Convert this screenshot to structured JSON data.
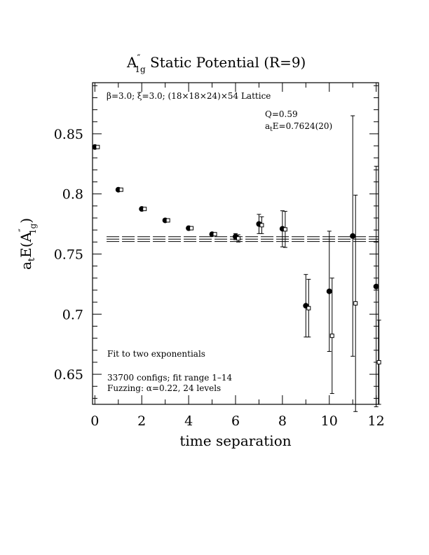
{
  "chart_data": {
    "type": "scatter",
    "title": "A″ 1g Static Potential (R=9)",
    "title_parts": {
      "main": "A",
      "prime": "″",
      "sub": "1g",
      "rest": " Static Potential (R=9)"
    },
    "xlabel": "time separation",
    "ylabel": "a_t E(A″_1g)",
    "ylabel_parts": {
      "a": "a",
      "a_sub": "t",
      "E": "E(A",
      "prime": "″",
      "sub": "1g",
      "close": ")"
    },
    "xlim": [
      -0.1,
      12.1
    ],
    "ylim": [
      0.625,
      0.8925
    ],
    "x_ticks": [
      0,
      2,
      4,
      6,
      8,
      10,
      12
    ],
    "x_tick_labels": [
      "0",
      "2",
      "4",
      "6",
      "8",
      "10",
      "12"
    ],
    "y_ticks": [
      0.65,
      0.7,
      0.75,
      0.8,
      0.85
    ],
    "y_tick_labels": [
      "0.65",
      "0.7",
      "0.75",
      "0.8",
      "0.85"
    ],
    "annotations": {
      "lattice": "β=3.0; ξ=3.0; (18×18×24)×54 Lattice",
      "q": "Q=0.59",
      "energy": "E=0.7624(20)",
      "energy_prefix": "a",
      "energy_sub": "t",
      "fit": "Fit to two exponentials",
      "configs": "33700 configs; fit range 1–14",
      "fuzzing": "Fuzzing: α=0.22, 24 levels"
    },
    "series": [
      {
        "marker": "filled-circle",
        "points": [
          {
            "x": 0,
            "y": 0.839,
            "err": 0.0
          },
          {
            "x": 1,
            "y": 0.8035,
            "err": 0.0
          },
          {
            "x": 2,
            "y": 0.7875,
            "err": 0.0
          },
          {
            "x": 3,
            "y": 0.778,
            "err": 0.0
          },
          {
            "x": 4,
            "y": 0.7715,
            "err": 0.0
          },
          {
            "x": 5,
            "y": 0.7665,
            "err": 0.0
          },
          {
            "x": 6,
            "y": 0.7645,
            "err": 0.0025
          },
          {
            "x": 7,
            "y": 0.775,
            "err": 0.008
          },
          {
            "x": 8,
            "y": 0.771,
            "err": 0.015
          },
          {
            "x": 9,
            "y": 0.707,
            "err": 0.026
          },
          {
            "x": 10,
            "y": 0.719,
            "err": 0.05
          },
          {
            "x": 11,
            "y": 0.765,
            "err": 0.1
          },
          {
            "x": 12,
            "y": 0.723,
            "err": 0.1
          }
        ]
      },
      {
        "marker": "open-square",
        "points": [
          {
            "x": 0,
            "y": 0.839,
            "err": 0.0
          },
          {
            "x": 1,
            "y": 0.8035,
            "err": 0.0
          },
          {
            "x": 2,
            "y": 0.7875,
            "err": 0.0
          },
          {
            "x": 3,
            "y": 0.778,
            "err": 0.0
          },
          {
            "x": 4,
            "y": 0.7715,
            "err": 0.0
          },
          {
            "x": 5,
            "y": 0.7665,
            "err": 0.0
          },
          {
            "x": 6,
            "y": 0.763,
            "err": 0.003
          },
          {
            "x": 7,
            "y": 0.774,
            "err": 0.007
          },
          {
            "x": 8,
            "y": 0.7705,
            "err": 0.015
          },
          {
            "x": 9,
            "y": 0.705,
            "err": 0.024
          },
          {
            "x": 10,
            "y": 0.682,
            "err": 0.048
          },
          {
            "x": 11,
            "y": 0.709,
            "err": 0.09
          },
          {
            "x": 12,
            "y": 0.66,
            "err": 0.035
          }
        ]
      }
    ],
    "fit_band": {
      "x_start": 0.5,
      "x_end": 12.1,
      "center": 0.7624,
      "error": 0.002,
      "style": "dashed"
    },
    "grid": false,
    "legend": "none"
  }
}
